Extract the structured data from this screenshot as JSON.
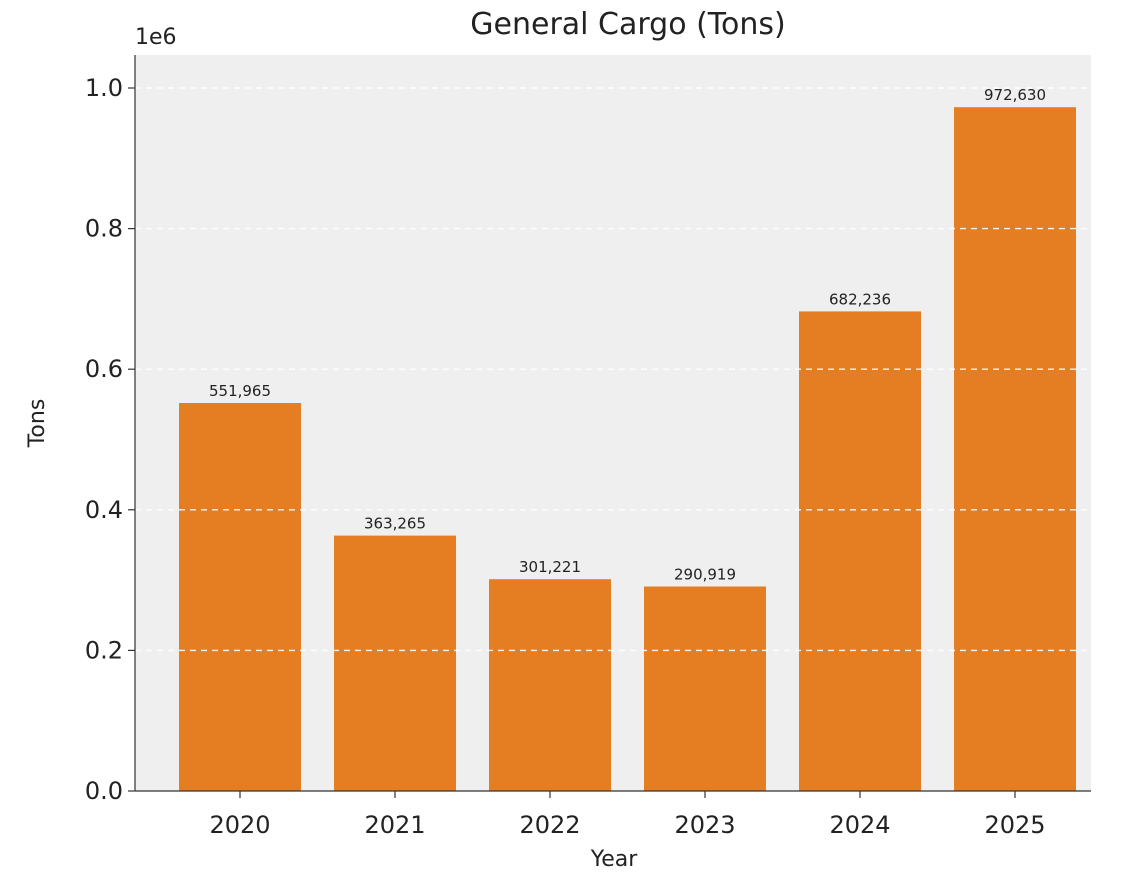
{
  "chart_data": {
    "type": "bar",
    "title": "General Cargo (Tons)",
    "xlabel": "Year",
    "ylabel": "Tons",
    "y_scale_label": "1e6",
    "categories": [
      "2020",
      "2021",
      "2022",
      "2023",
      "2024",
      "2025"
    ],
    "values": [
      551965,
      363265,
      301221,
      290919,
      682236,
      972630
    ],
    "data_labels": [
      "551,965",
      "363,265",
      "301,221",
      "290,919",
      "682,236",
      "972,630"
    ],
    "ylim": [
      0,
      1000000
    ],
    "y_ticks": [
      0,
      200000,
      400000,
      600000,
      800000,
      1000000
    ],
    "y_tick_labels": [
      "0.0",
      "0.2",
      "0.4",
      "0.6",
      "0.8",
      "1.0"
    ],
    "grid": true,
    "grid_style": "dashed",
    "bar_color": "#E57E22",
    "plot_background": "#EFEFEF",
    "grid_color": "#FFFFFF"
  }
}
